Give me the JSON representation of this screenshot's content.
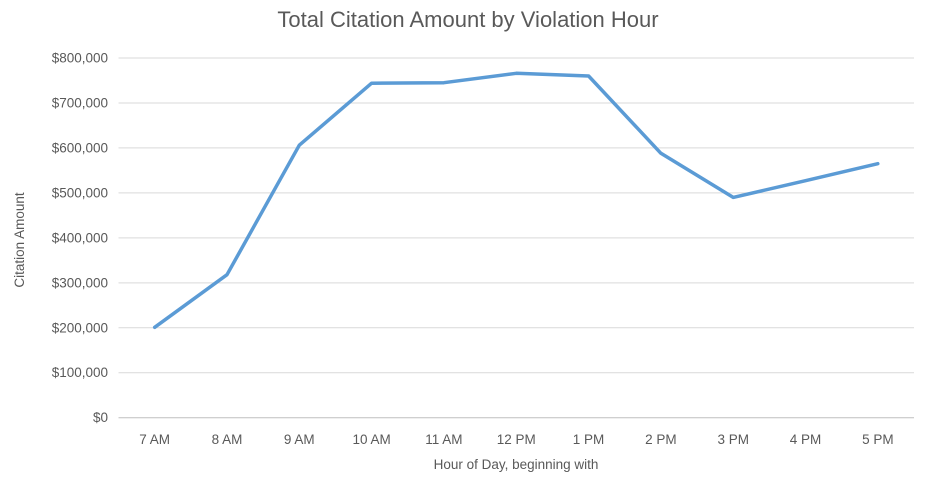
{
  "chart_data": {
    "type": "line",
    "title": "Total Citation Amount by Violation Hour",
    "xlabel": "Hour of Day, beginning with",
    "ylabel": "Citation Amount",
    "categories": [
      "7 AM",
      "8 AM",
      "9 AM",
      "10 AM",
      "11 AM",
      "12 PM",
      "1 PM",
      "2 PM",
      "3 PM",
      "4 PM",
      "5 PM"
    ],
    "values": [
      201000,
      318000,
      606000,
      744000,
      745000,
      766000,
      760000,
      588000,
      490000,
      527000,
      565000
    ],
    "ylim": [
      0,
      800000
    ],
    "ytick_step": 100000,
    "ytick_labels": [
      "$0",
      "$100,000",
      "$200,000",
      "$300,000",
      "$400,000",
      "$500,000",
      "$600,000",
      "$700,000",
      "$800,000"
    ],
    "grid": "horizontal",
    "legend": "none"
  },
  "colors": {
    "line": "#5B9BD5",
    "gridline": "#D9D9D9",
    "axis_line": "#BFBFBF",
    "text": "#595959",
    "background": "#FFFFFF"
  }
}
